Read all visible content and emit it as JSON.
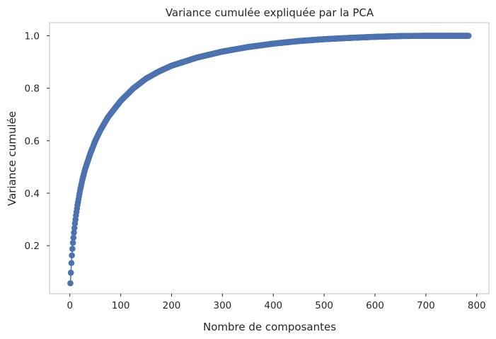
{
  "chart_data": {
    "type": "line",
    "title": "Variance cumulée expliquée par la PCA",
    "xlabel": "Nombre de composantes",
    "ylabel": "Variance cumulée",
    "xlim": [
      -40,
      824
    ],
    "ylim": [
      0.017,
      1.05
    ],
    "xticks": [
      0,
      100,
      200,
      300,
      400,
      500,
      600,
      700,
      800
    ],
    "yticks": [
      0.2,
      0.4,
      0.6,
      0.8,
      1.0
    ],
    "xtick_labels": [
      "0",
      "100",
      "200",
      "300",
      "400",
      "500",
      "600",
      "700",
      "800"
    ],
    "ytick_labels": [
      "0.2",
      "0.4",
      "0.6",
      "0.8",
      "1.0"
    ],
    "grid": false,
    "marker": "circle",
    "series_color": "#4c72b0",
    "series": [
      {
        "name": "variance cumulée",
        "x": [
          1,
          2,
          3,
          4,
          5,
          6,
          8,
          10,
          12,
          15,
          20,
          25,
          30,
          40,
          50,
          60,
          75,
          100,
          125,
          150,
          175,
          200,
          250,
          300,
          350,
          400,
          450,
          500,
          550,
          600,
          650,
          700,
          750,
          784
        ],
        "y": [
          0.057,
          0.097,
          0.134,
          0.163,
          0.188,
          0.211,
          0.25,
          0.285,
          0.315,
          0.355,
          0.41,
          0.455,
          0.492,
          0.55,
          0.6,
          0.64,
          0.69,
          0.752,
          0.8,
          0.837,
          0.864,
          0.886,
          0.917,
          0.94,
          0.957,
          0.97,
          0.98,
          0.987,
          0.992,
          0.996,
          0.999,
          1.0,
          1.0,
          1.0
        ]
      }
    ]
  }
}
